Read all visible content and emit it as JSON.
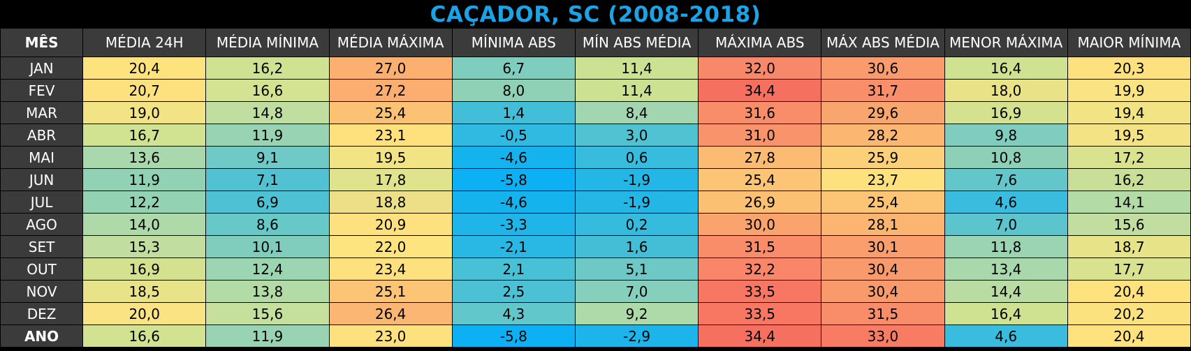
{
  "title": "CAÇADOR, SC (2008-2018)",
  "chart_data": {
    "type": "table",
    "title": "CAÇADOR, SC (2008-2018)",
    "columns": [
      "MÊS",
      "MÉDIA 24H",
      "MÉDIA MÍNIMA",
      "MÉDIA MÁXIMA",
      "MÍNIMA ABS",
      "MÍN ABS MÉDIA",
      "MÁXIMA ABS",
      "MÁX ABS MÉDIA",
      "MENOR MÁXIMA",
      "MAIOR MÍNIMA"
    ],
    "rows": [
      {
        "month": "JAN",
        "values": [
          "20,4",
          "16,2",
          "27,0",
          "6,7",
          "11,4",
          "32,0",
          "30,6",
          "16,4",
          "20,3"
        ],
        "colors": [
          "#fde27e",
          "#cfe292",
          "#fbb070",
          "#7fcdbf",
          "#cce192",
          "#f8886a",
          "#f99b6c",
          "#cfe292",
          "#fde17e"
        ]
      },
      {
        "month": "FEV",
        "values": [
          "20,7",
          "16,6",
          "27,2",
          "8,0",
          "11,4",
          "34,4",
          "31,7",
          "18,0",
          "19,9"
        ],
        "colors": [
          "#fde17e",
          "#d3e391",
          "#fbae70",
          "#8fd1b6",
          "#cce192",
          "#f5705f",
          "#f98f6a",
          "#e9e287",
          "#f9e382"
        ]
      },
      {
        "month": "MAR",
        "values": [
          "19,0",
          "14,8",
          "25,4",
          "1,4",
          "8,4",
          "31,6",
          "29,6",
          "16,9",
          "19,4"
        ],
        "colors": [
          "#f2e385",
          "#bfdea0",
          "#fcc274",
          "#42bed8",
          "#a2d6b1",
          "#f98c69",
          "#f9a66e",
          "#d4e290",
          "#f2e385"
        ]
      },
      {
        "month": "ABR",
        "values": [
          "16,7",
          "11,9",
          "23,1",
          "-0,5",
          "3,0",
          "31,0",
          "28,2",
          "9,8",
          "19,5"
        ],
        "colors": [
          "#d1e391",
          "#98d4b3",
          "#fee07d",
          "#30bae1",
          "#51c2d2",
          "#f9936b",
          "#fbb671",
          "#80cdbf",
          "#f3e385"
        ]
      },
      {
        "month": "MAI",
        "values": [
          "13,6",
          "9,1",
          "19,5",
          "-4,6",
          "0,6",
          "27,8",
          "25,9",
          "10,8",
          "17,2"
        ],
        "colors": [
          "#a9d8ad",
          "#6fc9c6",
          "#f2e385",
          "#15b3ee",
          "#38bcdd",
          "#fbbb72",
          "#fcd079",
          "#8cd1b7",
          "#d9e38f"
        ]
      },
      {
        "month": "JUN",
        "values": [
          "11,9",
          "7,1",
          "17,8",
          "-5,8",
          "-1,9",
          "25,4",
          "23,7",
          "7,6",
          "16,2"
        ],
        "colors": [
          "#91d2b5",
          "#52c2d2",
          "#dfe38c",
          "#0cb0f3",
          "#24b7e6",
          "#fcc575",
          "#fde17e",
          "#63c6ca",
          "#c9df97"
        ]
      },
      {
        "month": "JUL",
        "values": [
          "12,2",
          "6,9",
          "18,8",
          "-4,6",
          "-1,9",
          "26,9",
          "25,4",
          "4,6",
          "14,1"
        ],
        "colors": [
          "#93d3b4",
          "#4fc1d4",
          "#ecdf88",
          "#15b3ee",
          "#24b7e6",
          "#fcc073",
          "#fcc575",
          "#39bcdd",
          "#b3dba5"
        ]
      },
      {
        "month": "AGO",
        "values": [
          "14,0",
          "8,6",
          "20,9",
          "-3,3",
          "0,2",
          "30,0",
          "28,1",
          "7,0",
          "15,6"
        ],
        "colors": [
          "#aed9a9",
          "#67c8c8",
          "#fde17e",
          "#1fb5e9",
          "#35bbde",
          "#fba36d",
          "#fbb571",
          "#5cc4cd",
          "#c1dda0"
        ]
      },
      {
        "month": "SET",
        "values": [
          "15,3",
          "10,1",
          "22,0",
          "-2,1",
          "1,6",
          "31,5",
          "30,1",
          "11,8",
          "18,7"
        ],
        "colors": [
          "#c1dea0",
          "#80cdbe",
          "#fde47f",
          "#29b8e4",
          "#44bed7",
          "#f98d69",
          "#f99e6c",
          "#9ad4b2",
          "#e7e389"
        ]
      },
      {
        "month": "OUT",
        "values": [
          "16,9",
          "12,4",
          "23,4",
          "2,1",
          "5,1",
          "32,2",
          "30,4",
          "13,4",
          "17,7"
        ],
        "colors": [
          "#d4e290",
          "#9bd5b2",
          "#fde17e",
          "#48c0d6",
          "#6ec9c6",
          "#f98669",
          "#f99a6c",
          "#a9d8ad",
          "#d9e38f"
        ]
      },
      {
        "month": "NOV",
        "values": [
          "18,5",
          "13,8",
          "25,1",
          "2,5",
          "7,0",
          "33,5",
          "30,4",
          "14,4",
          "20,4"
        ],
        "colors": [
          "#e8e388",
          "#b3dba5",
          "#fcc575",
          "#4cc1d5",
          "#86cfbd",
          "#f77763",
          "#f99a6c",
          "#b8dca2",
          "#fde27e"
        ]
      },
      {
        "month": "DEZ",
        "values": [
          "20,0",
          "15,6",
          "26,4",
          "4,3",
          "9,2",
          "33,5",
          "31,5",
          "16,4",
          "20,2"
        ],
        "colors": [
          "#fae383",
          "#c5df9c",
          "#fbb673",
          "#62c7ca",
          "#aed9a9",
          "#f77763",
          "#f98d69",
          "#cfe292",
          "#fce17f"
        ]
      },
      {
        "month": "ANO",
        "values": [
          "16,6",
          "11,9",
          "23,0",
          "-5,8",
          "-2,9",
          "34,4",
          "33,0",
          "4,6",
          "20,4"
        ],
        "colors": [
          "#d1e391",
          "#98d4b3",
          "#fde17e",
          "#0cb0f3",
          "#1cb4eb",
          "#f5705f",
          "#f87b64",
          "#39bcdd",
          "#fde27e"
        ]
      }
    ]
  }
}
